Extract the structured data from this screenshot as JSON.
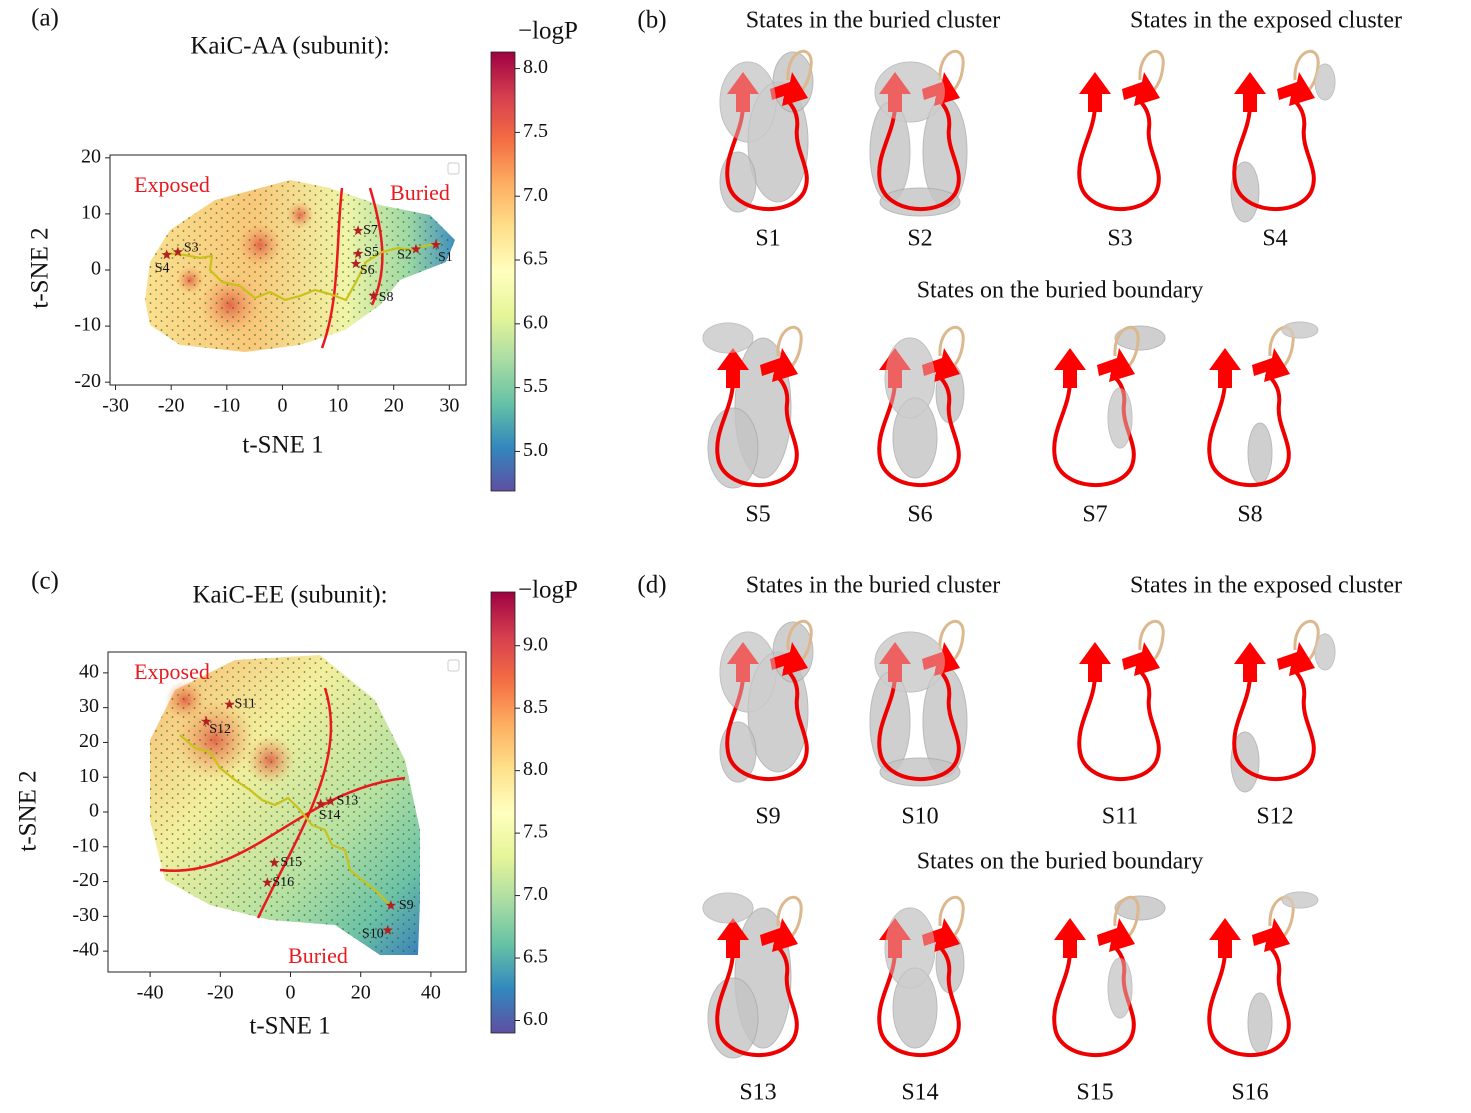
{
  "chart_data": [
    {
      "type": "scatter",
      "panel_label": "(a)",
      "title": "KaiC-AA (subunit):",
      "xlabel": "t-SNE 1",
      "ylabel": "t-SNE 2",
      "xlim": [
        -31,
        33
      ],
      "xticks": [
        -30,
        -20,
        -10,
        0,
        10,
        20,
        30
      ],
      "ylim": [
        -20.5,
        20.5
      ],
      "yticks": [
        -20,
        -10,
        0,
        10,
        20
      ],
      "series": [
        {
          "color": "#b22222",
          "x": [
            27.6,
            24,
            -18.8,
            -20.8,
            13.6,
            13.2,
            13.6,
            16.4
          ],
          "values": [
            4.5,
            3.7,
            3.2,
            2.7,
            2.9,
            1.1,
            7,
            -4.6
          ],
          "labels": [
            "S1",
            "S2",
            "S3",
            "S4",
            "S5",
            "S6",
            "S7",
            "S8"
          ]
        }
      ],
      "annotations": [
        "Exposed",
        "Buried"
      ],
      "colorbar": {
        "label": "−logP",
        "clim": [
          4.69,
          8.13
        ],
        "ticks": [
          {
            "value": 5,
            "label": "5.0"
          },
          5.5,
          {
            "value": 6,
            "label": "6.0"
          },
          6.5,
          {
            "value": 7,
            "label": "7.0"
          },
          7.5,
          {
            "value": 8,
            "label": "8.0"
          }
        ]
      }
    },
    {
      "type": "scatter",
      "panel_label": "(c)",
      "title": "KaiC-EE (subunit):",
      "xlabel": "t-SNE 1",
      "ylabel": "t-SNE 2",
      "xlim": [
        -52,
        50
      ],
      "xticks": [
        -40,
        -20,
        0,
        20,
        40
      ],
      "ylim": [
        -46,
        46
      ],
      "yticks": [
        -40,
        -30,
        -20,
        -10,
        0,
        10,
        20,
        30,
        40
      ],
      "series": [
        {
          "color": "#b22222",
          "x": [
            28.6,
            27.7,
            -17.4,
            -24,
            11.4,
            8.6,
            -4.6,
            -6.6
          ],
          "values": [
            -26.9,
            -34,
            30.9,
            26,
            3.1,
            2.3,
            -14.6,
            -20.3
          ],
          "labels": [
            "S9",
            "S10",
            "S11",
            "S12",
            "S13",
            "S14",
            "S15",
            "S16"
          ]
        }
      ],
      "annotations": [
        "Exposed",
        "Buried"
      ],
      "colorbar": {
        "label": "−logP",
        "clim": [
          5.9,
          9.43
        ],
        "ticks": [
          {
            "value": 6,
            "label": "6.0"
          },
          6.5,
          {
            "value": 7,
            "label": "7.0"
          },
          7.5,
          {
            "value": 8,
            "label": "8.0"
          },
          8.5,
          {
            "value": 9,
            "label": "9.0"
          }
        ]
      }
    }
  ],
  "panels": [
    {
      "label": "(b)",
      "headers": [
        "States in the buried cluster",
        "States in the exposed cluster",
        "States on the buried boundary"
      ],
      "states": [
        "S1",
        "S2",
        "S3",
        "S4",
        "S5",
        "S6",
        "S7",
        "S8"
      ]
    },
    {
      "label": "(d)",
      "headers": [
        "States in the buried cluster",
        "States in the exposed cluster",
        "States on the buried boundary"
      ],
      "states": [
        "S9",
        "S10",
        "S11",
        "S12",
        "S13",
        "S14",
        "S15",
        "S16"
      ]
    }
  ]
}
